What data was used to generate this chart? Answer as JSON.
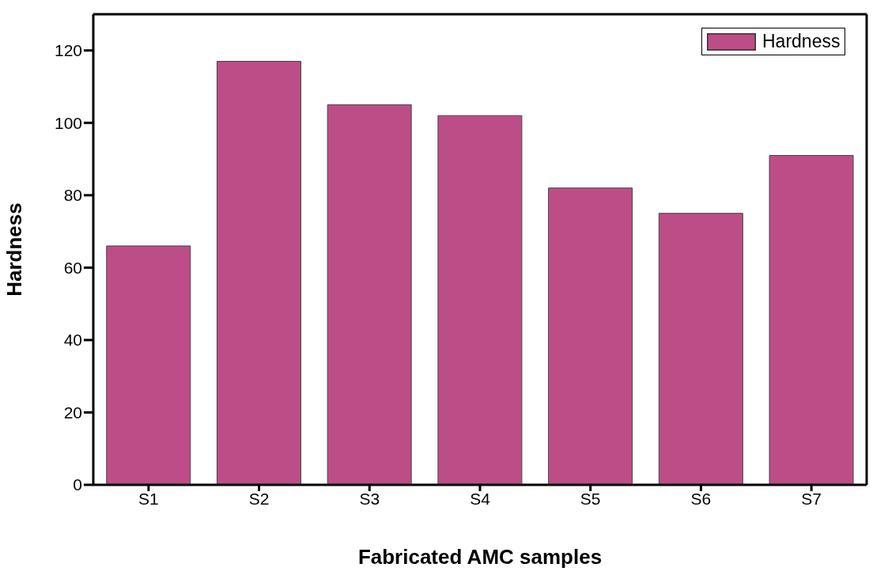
{
  "chart_data": {
    "type": "bar",
    "xlabel": "Fabricated AMC samples",
    "ylabel": "Hardness",
    "categories": [
      "S1",
      "S2",
      "S3",
      "S4",
      "S5",
      "S6",
      "S7"
    ],
    "series": [
      {
        "name": "Hardness",
        "color": "#bd4d87",
        "values": [
          66,
          117,
          105,
          102,
          82,
          75,
          91
        ]
      }
    ],
    "ylim": [
      0,
      130
    ],
    "yticks": [
      0,
      20,
      40,
      60,
      80,
      100,
      120
    ],
    "grid": false,
    "legend": "top right"
  }
}
